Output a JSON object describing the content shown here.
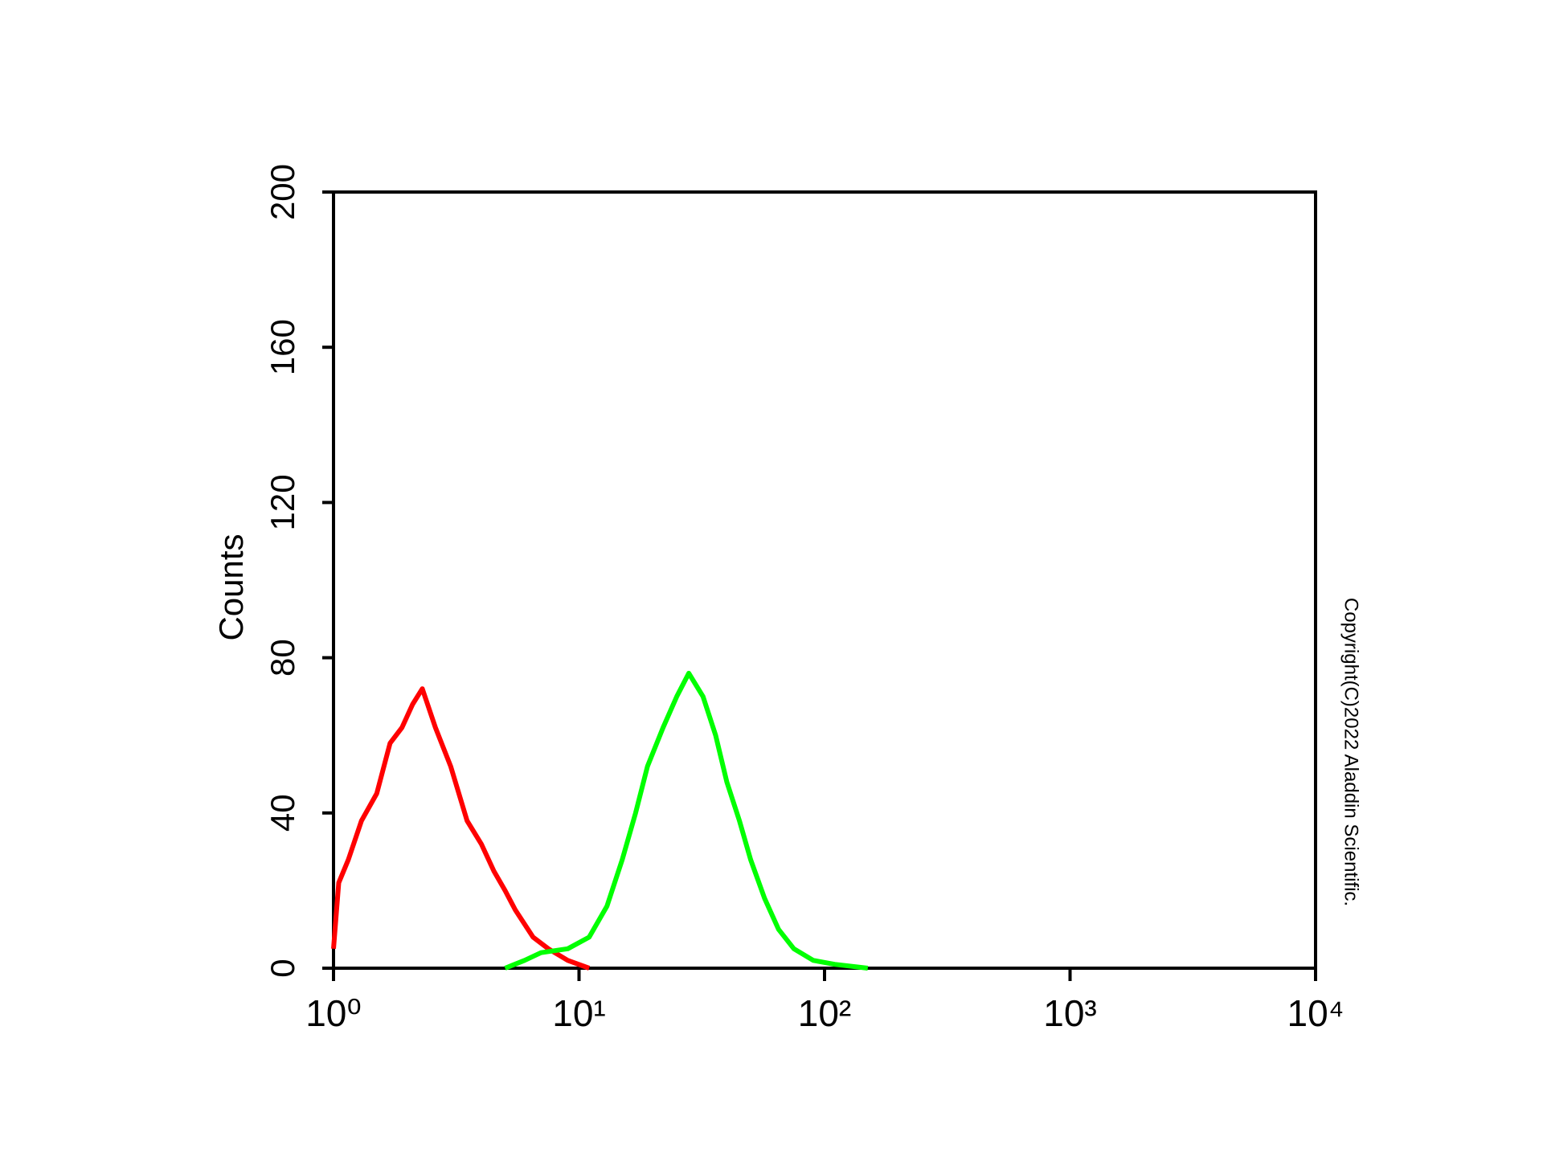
{
  "chart_data": {
    "type": "line",
    "ylabel": "Counts",
    "annotation": "Copyright(C)2022 Aladdin Scientific.",
    "xscale": "log",
    "xlim": [
      1,
      10000
    ],
    "xticks": [
      {
        "value": 1,
        "label": "10⁰"
      },
      {
        "value": 10,
        "label": "10¹"
      },
      {
        "value": 100,
        "label": "10²"
      },
      {
        "value": 1000,
        "label": "10³"
      },
      {
        "value": 10000,
        "label": "10⁴"
      }
    ],
    "ylim": [
      0,
      200
    ],
    "yticks": [
      0,
      40,
      80,
      120,
      160,
      200
    ],
    "series": [
      {
        "color": "#ff0000",
        "x": [
          1.0,
          1.05,
          1.15,
          1.3,
          1.5,
          1.7,
          1.9,
          2.1,
          2.3,
          2.6,
          3.0,
          3.5,
          4.0,
          4.5,
          5.0,
          5.5,
          6.5,
          7.5,
          9,
          11
        ],
        "values": [
          5,
          22,
          28,
          38,
          45,
          58,
          62,
          68,
          72,
          62,
          52,
          38,
          32,
          25,
          20,
          15,
          8,
          5,
          2,
          0
        ]
      },
      {
        "color": "#00ff00",
        "x": [
          5,
          6,
          7,
          9,
          11,
          13,
          15,
          17,
          19,
          22,
          25,
          28,
          32,
          36,
          40,
          45,
          50,
          57,
          65,
          75,
          90,
          110,
          150
        ],
        "values": [
          0,
          2,
          4,
          5,
          8,
          16,
          28,
          40,
          52,
          62,
          70,
          76,
          70,
          60,
          48,
          38,
          28,
          18,
          10,
          5,
          2,
          1,
          0
        ]
      }
    ]
  }
}
